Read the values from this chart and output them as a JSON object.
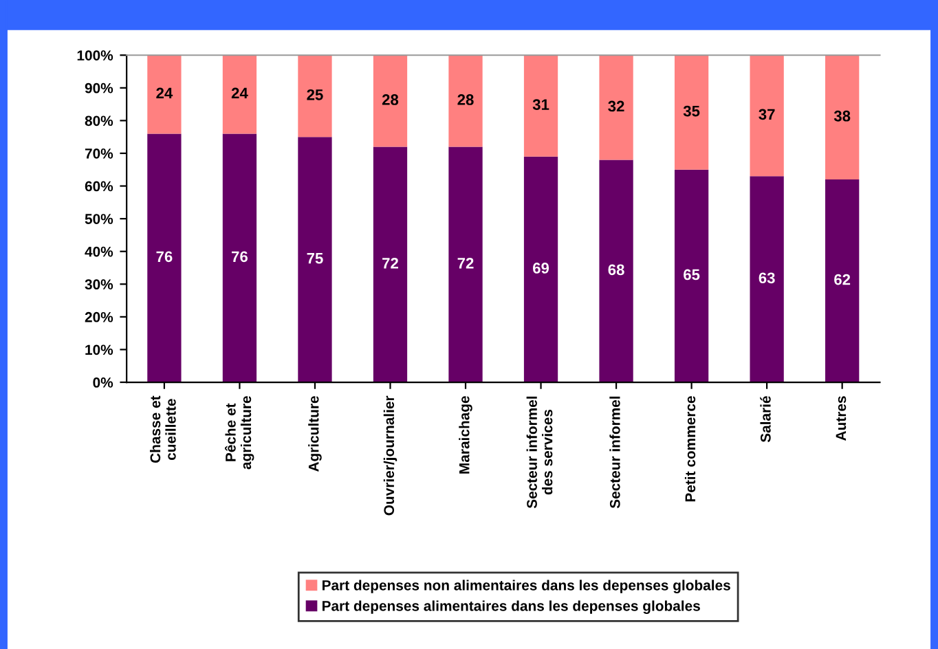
{
  "chart_data": {
    "type": "bar",
    "stacked": true,
    "categories": [
      "Chasse et\ncueillette",
      "Pêche et\nagriculture",
      "Agriculture",
      "Ouvrier/journalier",
      "Maraichage",
      "Secteur informel\ndes services",
      "Secteur informel",
      "Petit commerce",
      "Salarié",
      "Autres"
    ],
    "series": [
      {
        "name": "Part depenses alimentaires dans les depenses globales",
        "color": "#660066",
        "values": [
          76,
          76,
          75,
          72,
          72,
          69,
          68,
          65,
          63,
          62
        ]
      },
      {
        "name": "Part depenses non alimentaires dans les depenses globales",
        "color": "#ff8080",
        "values": [
          24,
          24,
          25,
          28,
          28,
          31,
          32,
          35,
          37,
          38
        ]
      }
    ],
    "ylim": [
      0,
      100
    ],
    "yticks": [
      {
        "value": 0,
        "label": "0%"
      },
      {
        "value": 10,
        "label": "10%"
      },
      {
        "value": 20,
        "label": "20%"
      },
      {
        "value": 30,
        "label": "30%"
      },
      {
        "value": 40,
        "label": "40%"
      },
      {
        "value": 50,
        "label": "50%"
      },
      {
        "value": 60,
        "label": "60%"
      },
      {
        "value": 70,
        "label": "70%"
      },
      {
        "value": 80,
        "label": "80%"
      },
      {
        "value": 90,
        "label": "90%"
      },
      {
        "value": 100,
        "label": "100%"
      }
    ],
    "data_labels": true,
    "grid": false,
    "legend": "bottom"
  }
}
